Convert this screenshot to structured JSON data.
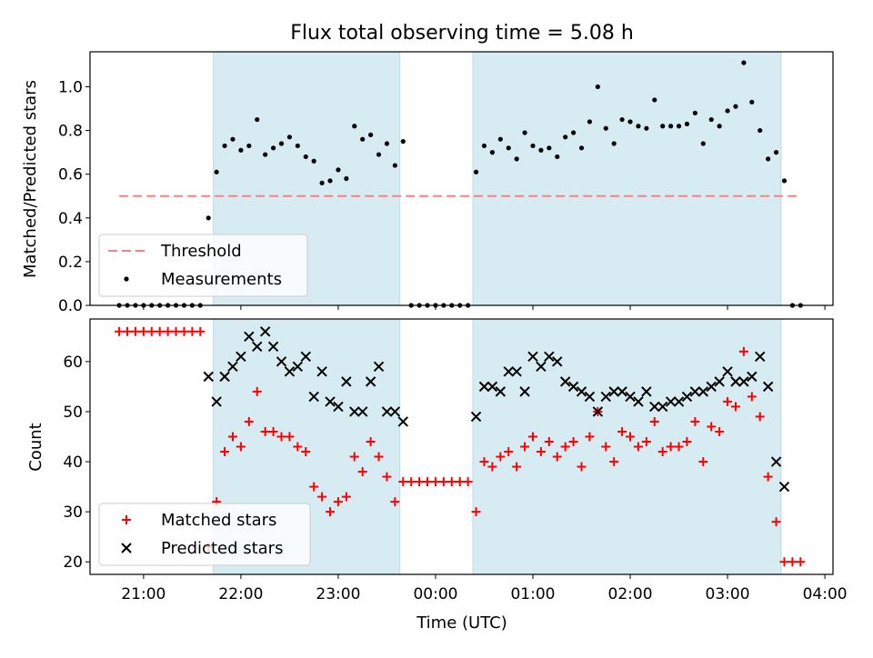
{
  "chart_data": [
    {
      "type": "scatter",
      "title": "Flux total observing time = 5.08 h",
      "xlabel": "",
      "ylabel": "Matched/Predicted stars",
      "ylim": [
        0,
        1.16
      ],
      "xlim": [
        "20:27",
        "04:05"
      ],
      "yticks": [
        "0.0",
        "0.2",
        "0.4",
        "0.6",
        "0.8",
        "1.0"
      ],
      "shaded_intervals": [
        [
          "21:43",
          "23:38"
        ],
        [
          "00:23",
          "03:33"
        ]
      ],
      "legend_position": "lower-left",
      "threshold": {
        "name": "Threshold",
        "value": 0.5,
        "x_range": [
          "20:45",
          "03:45"
        ],
        "color": "#ff7f7f"
      },
      "series": [
        {
          "name": "Measurements",
          "color": "#000000",
          "points": [
            [
              "20:45",
              0
            ],
            [
              "20:50",
              0
            ],
            [
              "20:55",
              0
            ],
            [
              "21:00",
              0
            ],
            [
              "21:05",
              0
            ],
            [
              "21:10",
              0
            ],
            [
              "21:15",
              0
            ],
            [
              "21:20",
              0
            ],
            [
              "21:25",
              0
            ],
            [
              "21:30",
              0
            ],
            [
              "21:35",
              0
            ],
            [
              "21:40",
              0.4
            ],
            [
              "21:45",
              0.61
            ],
            [
              "21:50",
              0.73
            ],
            [
              "21:55",
              0.76
            ],
            [
              "22:00",
              0.71
            ],
            [
              "22:05",
              0.73
            ],
            [
              "22:10",
              0.85
            ],
            [
              "22:15",
              0.69
            ],
            [
              "22:20",
              0.72
            ],
            [
              "22:25",
              0.74
            ],
            [
              "22:30",
              0.77
            ],
            [
              "22:35",
              0.73
            ],
            [
              "22:40",
              0.68
            ],
            [
              "22:45",
              0.66
            ],
            [
              "22:50",
              0.56
            ],
            [
              "22:55",
              0.57
            ],
            [
              "23:00",
              0.62
            ],
            [
              "23:05",
              0.58
            ],
            [
              "23:10",
              0.82
            ],
            [
              "23:15",
              0.76
            ],
            [
              "23:20",
              0.78
            ],
            [
              "23:25",
              0.69
            ],
            [
              "23:30",
              0.74
            ],
            [
              "23:35",
              0.64
            ],
            [
              "23:40",
              0.75
            ],
            [
              "23:45",
              0
            ],
            [
              "23:50",
              0
            ],
            [
              "23:55",
              0
            ],
            [
              "00:00",
              0
            ],
            [
              "00:05",
              0
            ],
            [
              "00:10",
              0
            ],
            [
              "00:15",
              0
            ],
            [
              "00:20",
              0
            ],
            [
              "00:25",
              0.61
            ],
            [
              "00:30",
              0.73
            ],
            [
              "00:35",
              0.7
            ],
            [
              "00:40",
              0.76
            ],
            [
              "00:45",
              0.72
            ],
            [
              "00:50",
              0.67
            ],
            [
              "00:55",
              0.79
            ],
            [
              "01:00",
              0.73
            ],
            [
              "01:05",
              0.71
            ],
            [
              "01:10",
              0.72
            ],
            [
              "01:15",
              0.68
            ],
            [
              "01:20",
              0.77
            ],
            [
              "01:25",
              0.79
            ],
            [
              "01:30",
              0.72
            ],
            [
              "01:35",
              0.84
            ],
            [
              "01:40",
              1.0
            ],
            [
              "01:45",
              0.81
            ],
            [
              "01:50",
              0.74
            ],
            [
              "01:55",
              0.85
            ],
            [
              "02:00",
              0.84
            ],
            [
              "02:05",
              0.82
            ],
            [
              "02:10",
              0.81
            ],
            [
              "02:15",
              0.94
            ],
            [
              "02:20",
              0.82
            ],
            [
              "02:25",
              0.82
            ],
            [
              "02:30",
              0.82
            ],
            [
              "02:35",
              0.83
            ],
            [
              "02:40",
              0.88
            ],
            [
              "02:45",
              0.74
            ],
            [
              "02:50",
              0.85
            ],
            [
              "02:55",
              0.82
            ],
            [
              "03:00",
              0.89
            ],
            [
              "03:05",
              0.91
            ],
            [
              "03:10",
              1.11
            ],
            [
              "03:15",
              0.93
            ],
            [
              "03:20",
              0.8
            ],
            [
              "03:25",
              0.67
            ],
            [
              "03:30",
              0.7
            ],
            [
              "03:35",
              0.57
            ],
            [
              "03:40",
              0
            ],
            [
              "03:45",
              0
            ]
          ]
        }
      ]
    },
    {
      "type": "scatter",
      "title": "",
      "xlabel": "Time (UTC)",
      "ylabel": "Count",
      "ylim": [
        17.5,
        68.5
      ],
      "xlim": [
        "20:27",
        "04:05"
      ],
      "xticks": [
        "21:00",
        "22:00",
        "23:00",
        "00:00",
        "01:00",
        "02:00",
        "03:00",
        "04:00"
      ],
      "yticks": [
        "20",
        "30",
        "40",
        "50",
        "60"
      ],
      "shaded_intervals": [
        [
          "21:43",
          "23:38"
        ],
        [
          "00:23",
          "03:33"
        ]
      ],
      "legend_position": "lower-left",
      "series": [
        {
          "name": "Matched stars",
          "marker": "plus",
          "color": "#ff0000",
          "points": [
            [
              "20:45",
              66
            ],
            [
              "20:50",
              66
            ],
            [
              "20:55",
              66
            ],
            [
              "21:00",
              66
            ],
            [
              "21:05",
              66
            ],
            [
              "21:10",
              66
            ],
            [
              "21:15",
              66
            ],
            [
              "21:20",
              66
            ],
            [
              "21:25",
              66
            ],
            [
              "21:30",
              66
            ],
            [
              "21:35",
              66
            ],
            [
              "21:40",
              23
            ],
            [
              "21:45",
              32
            ],
            [
              "21:50",
              42
            ],
            [
              "21:55",
              45
            ],
            [
              "22:00",
              43
            ],
            [
              "22:05",
              48
            ],
            [
              "22:10",
              54
            ],
            [
              "22:15",
              46
            ],
            [
              "22:20",
              46
            ],
            [
              "22:25",
              45
            ],
            [
              "22:30",
              45
            ],
            [
              "22:35",
              43
            ],
            [
              "22:40",
              42
            ],
            [
              "22:45",
              35
            ],
            [
              "22:50",
              33
            ],
            [
              "22:55",
              30
            ],
            [
              "23:00",
              32
            ],
            [
              "23:05",
              33
            ],
            [
              "23:10",
              41
            ],
            [
              "23:15",
              38
            ],
            [
              "23:20",
              44
            ],
            [
              "23:25",
              41
            ],
            [
              "23:30",
              37
            ],
            [
              "23:35",
              32
            ],
            [
              "23:40",
              36
            ],
            [
              "23:45",
              36
            ],
            [
              "23:50",
              36
            ],
            [
              "23:55",
              36
            ],
            [
              "00:00",
              36
            ],
            [
              "00:05",
              36
            ],
            [
              "00:10",
              36
            ],
            [
              "00:15",
              36
            ],
            [
              "00:20",
              36
            ],
            [
              "00:25",
              30
            ],
            [
              "00:30",
              40
            ],
            [
              "00:35",
              39
            ],
            [
              "00:40",
              41
            ],
            [
              "00:45",
              42
            ],
            [
              "00:50",
              39
            ],
            [
              "00:55",
              43
            ],
            [
              "01:00",
              45
            ],
            [
              "01:05",
              42
            ],
            [
              "01:10",
              44
            ],
            [
              "01:15",
              41
            ],
            [
              "01:20",
              43
            ],
            [
              "01:25",
              44
            ],
            [
              "01:30",
              39
            ],
            [
              "01:35",
              45
            ],
            [
              "01:40",
              50
            ],
            [
              "01:45",
              43
            ],
            [
              "01:50",
              40
            ],
            [
              "01:55",
              46
            ],
            [
              "02:00",
              45
            ],
            [
              "02:05",
              43
            ],
            [
              "02:10",
              44
            ],
            [
              "02:15",
              48
            ],
            [
              "02:20",
              42
            ],
            [
              "02:25",
              43
            ],
            [
              "02:30",
              43
            ],
            [
              "02:35",
              44
            ],
            [
              "02:40",
              48
            ],
            [
              "02:45",
              40
            ],
            [
              "02:50",
              47
            ],
            [
              "02:55",
              46
            ],
            [
              "03:00",
              52
            ],
            [
              "03:05",
              51
            ],
            [
              "03:10",
              62
            ],
            [
              "03:15",
              53
            ],
            [
              "03:20",
              49
            ],
            [
              "03:25",
              37
            ],
            [
              "03:30",
              28
            ],
            [
              "03:35",
              20
            ],
            [
              "03:40",
              20
            ],
            [
              "03:45",
              20
            ]
          ]
        },
        {
          "name": "Predicted stars",
          "marker": "x",
          "color": "#000000",
          "points": [
            [
              "21:40",
              57
            ],
            [
              "21:45",
              52
            ],
            [
              "21:50",
              57
            ],
            [
              "21:55",
              59
            ],
            [
              "22:00",
              61
            ],
            [
              "22:05",
              65
            ],
            [
              "22:10",
              63
            ],
            [
              "22:15",
              66
            ],
            [
              "22:20",
              63
            ],
            [
              "22:25",
              60
            ],
            [
              "22:30",
              58
            ],
            [
              "22:35",
              59
            ],
            [
              "22:40",
              61
            ],
            [
              "22:45",
              53
            ],
            [
              "22:50",
              58
            ],
            [
              "22:55",
              52
            ],
            [
              "23:00",
              51
            ],
            [
              "23:05",
              56
            ],
            [
              "23:10",
              50
            ],
            [
              "23:15",
              50
            ],
            [
              "23:20",
              56
            ],
            [
              "23:25",
              59
            ],
            [
              "23:30",
              50
            ],
            [
              "23:35",
              50
            ],
            [
              "23:40",
              48
            ],
            [
              "00:25",
              49
            ],
            [
              "00:30",
              55
            ],
            [
              "00:35",
              55
            ],
            [
              "00:40",
              54
            ],
            [
              "00:45",
              58
            ],
            [
              "00:50",
              58
            ],
            [
              "00:55",
              54
            ],
            [
              "01:00",
              61
            ],
            [
              "01:05",
              59
            ],
            [
              "01:10",
              61
            ],
            [
              "01:15",
              60
            ],
            [
              "01:20",
              56
            ],
            [
              "01:25",
              55
            ],
            [
              "01:30",
              54
            ],
            [
              "01:35",
              53
            ],
            [
              "01:40",
              50
            ],
            [
              "01:45",
              53
            ],
            [
              "01:50",
              54
            ],
            [
              "01:55",
              54
            ],
            [
              "02:00",
              53
            ],
            [
              "02:05",
              52
            ],
            [
              "02:10",
              54
            ],
            [
              "02:15",
              51
            ],
            [
              "02:20",
              51
            ],
            [
              "02:25",
              52
            ],
            [
              "02:30",
              52
            ],
            [
              "02:35",
              53
            ],
            [
              "02:40",
              54
            ],
            [
              "02:45",
              54
            ],
            [
              "02:50",
              55
            ],
            [
              "02:55",
              56
            ],
            [
              "03:00",
              58
            ],
            [
              "03:05",
              56
            ],
            [
              "03:10",
              56
            ],
            [
              "03:15",
              57
            ],
            [
              "03:20",
              61
            ],
            [
              "03:25",
              55
            ],
            [
              "03:30",
              40
            ],
            [
              "03:35",
              35
            ]
          ]
        }
      ]
    }
  ]
}
